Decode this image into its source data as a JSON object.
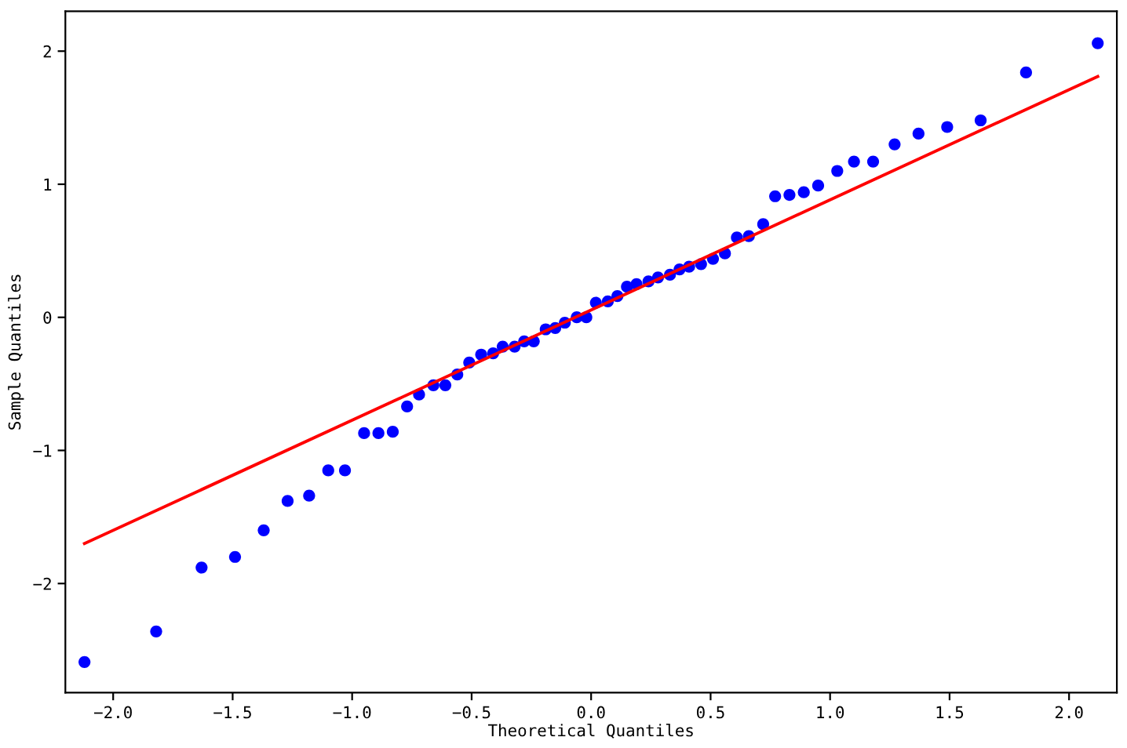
{
  "chart_data": {
    "type": "scatter",
    "xlabel": "Theoretical Quantiles",
    "ylabel": "Sample Quantiles",
    "xlim": [
      -2.2,
      2.2
    ],
    "ylim": [
      -2.82,
      2.3
    ],
    "xticks": [
      {
        "value": -2.0,
        "label": "−2.0"
      },
      {
        "value": -1.5,
        "label": "−1.5"
      },
      {
        "value": -1.0,
        "label": "−1.0"
      },
      {
        "value": -0.5,
        "label": "−0.5"
      },
      {
        "value": 0.0,
        "label": "0.0"
      },
      {
        "value": 0.5,
        "label": "0.5"
      },
      {
        "value": 1.0,
        "label": "1.0"
      },
      {
        "value": 1.5,
        "label": "1.5"
      },
      {
        "value": 2.0,
        "label": "2.0"
      }
    ],
    "yticks": [
      {
        "value": -2,
        "label": "−2"
      },
      {
        "value": -1,
        "label": "−1"
      },
      0,
      1,
      2
    ],
    "marker": "circle",
    "series": [
      {
        "color": "#0000ff",
        "x": [
          -2.12,
          -1.82,
          -1.63,
          -1.49,
          -1.37,
          -1.27,
          -1.18,
          -1.1,
          -1.03,
          -0.95,
          -0.89,
          -0.83,
          -0.77,
          -0.72,
          -0.66,
          -0.61,
          -0.56,
          -0.51,
          -0.46,
          -0.41,
          -0.37,
          -0.32,
          -0.28,
          -0.24,
          -0.19,
          -0.15,
          -0.11,
          -0.06,
          -0.02,
          0.02,
          0.07,
          0.11,
          0.15,
          0.19,
          0.24,
          0.28,
          0.33,
          0.37,
          0.41,
          0.46,
          0.51,
          0.56,
          0.61,
          0.66,
          0.72,
          0.77,
          0.83,
          0.89,
          0.95,
          1.03,
          1.1,
          1.18,
          1.27,
          1.37,
          1.49,
          1.63,
          1.82,
          2.12
        ],
        "values": [
          -2.59,
          -2.36,
          -1.88,
          -1.8,
          -1.6,
          -1.38,
          -1.34,
          -1.15,
          -1.15,
          -0.87,
          -0.87,
          -0.86,
          -0.67,
          -0.58,
          -0.51,
          -0.51,
          -0.43,
          -0.34,
          -0.28,
          -0.27,
          -0.22,
          -0.22,
          -0.18,
          -0.18,
          -0.09,
          -0.08,
          -0.04,
          0.0,
          0.0,
          0.11,
          0.12,
          0.16,
          0.23,
          0.25,
          0.27,
          0.3,
          0.32,
          0.36,
          0.38,
          0.4,
          0.44,
          0.48,
          0.6,
          0.61,
          0.7,
          0.91,
          0.92,
          0.94,
          0.99,
          1.1,
          1.17,
          1.17,
          1.3,
          1.38,
          1.43,
          1.48,
          1.84,
          2.06
        ]
      },
      {
        "type": "line",
        "color": "#ff0000",
        "marker": "none",
        "line_style": "solid",
        "x": [
          -2.12,
          2.12
        ],
        "values": [
          -1.7,
          1.81
        ]
      }
    ]
  }
}
